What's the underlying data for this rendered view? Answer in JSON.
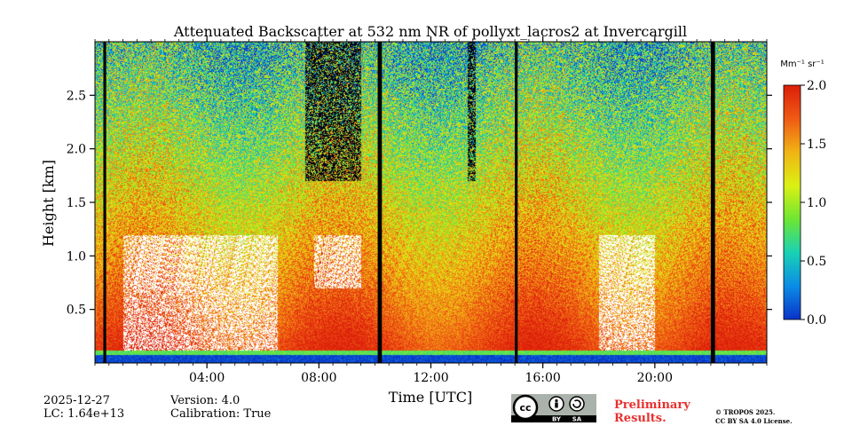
{
  "chart_data": {
    "type": "heatmap",
    "title": "Attenuated Backscatter at 532 nm NR of pollyxt_lacros2 at Invercargill",
    "xlabel": "Time [UTC]",
    "ylabel": "Height [km]",
    "xlim_hours": [
      0,
      24
    ],
    "ylim_km": [
      0,
      3.0
    ],
    "x_ticks": [
      {
        "value": 4,
        "label": "04:00"
      },
      {
        "value": 8,
        "label": "08:00"
      },
      {
        "value": 12,
        "label": "12:00"
      },
      {
        "value": 16,
        "label": "16:00"
      },
      {
        "value": 20,
        "label": "20:00"
      }
    ],
    "y_ticks": [
      {
        "value": 0.5,
        "label": "0.5"
      },
      {
        "value": 1.0,
        "label": "1.0"
      },
      {
        "value": 1.5,
        "label": "1.5"
      },
      {
        "value": 2.0,
        "label": "2.0"
      },
      {
        "value": 2.5,
        "label": "2.5"
      }
    ],
    "colorbar": {
      "label": "Mm⁻¹ sr⁻¹",
      "vmin": 0.0,
      "vmax": 2.0,
      "ticks": [
        {
          "value": 0.0,
          "label": "0.0"
        },
        {
          "value": 0.5,
          "label": "0.5"
        },
        {
          "value": 1.0,
          "label": "1.0"
        },
        {
          "value": 1.5,
          "label": "1.5"
        },
        {
          "value": 2.0,
          "label": "2.0"
        }
      ],
      "colormap": [
        "#0a32c8",
        "#0a8ce6",
        "#19d2b4",
        "#6ee632",
        "#dcf014",
        "#f0b414",
        "#f05a14",
        "#dc1e0a"
      ]
    },
    "no_data_periods_hours": [
      [
        0.3,
        0.4
      ],
      [
        10.1,
        10.25
      ],
      [
        15.0,
        15.1
      ],
      [
        22.0,
        22.15
      ]
    ],
    "cloud_periods_hours": [
      [
        7.5,
        9.5
      ],
      [
        13.3,
        13.6
      ]
    ]
  },
  "footer": {
    "date": "2025-12-27",
    "lc": "LC: 1.64e+13",
    "version": "Version: 4.0",
    "calibration": "Calibration: True",
    "preliminary": "Preliminary\nResults.",
    "copyright": "© TROPOS 2025.\nCC BY SA 4.0 License.",
    "license_badge": {
      "cc": "cc",
      "by": "BY",
      "sa": "SA"
    }
  }
}
